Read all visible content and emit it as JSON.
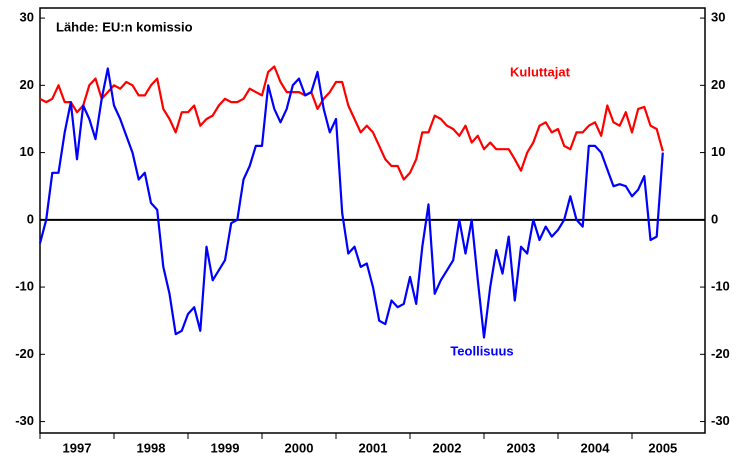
{
  "chart_data": {
    "type": "line",
    "source": "Lähde: EU:n komissio",
    "categories": [
      null,
      null,
      null,
      null,
      null,
      null,
      "1997",
      null,
      null,
      null,
      null,
      null,
      null,
      null,
      null,
      null,
      null,
      null,
      "1998",
      null,
      null,
      null,
      null,
      null,
      null,
      null,
      null,
      null,
      null,
      null,
      "1999",
      null,
      null,
      null,
      null,
      null,
      null,
      null,
      null,
      null,
      null,
      null,
      "2000",
      null,
      null,
      null,
      null,
      null,
      null,
      null,
      null,
      null,
      null,
      null,
      "2001",
      null,
      null,
      null,
      null,
      null,
      null,
      null,
      null,
      null,
      null,
      null,
      "2002",
      null,
      null,
      null,
      null,
      null,
      null,
      null,
      null,
      null,
      null,
      null,
      "2003",
      null,
      null,
      null,
      null,
      null,
      null,
      null,
      null,
      null,
      null,
      null,
      "2004",
      null,
      null,
      null,
      null,
      null,
      null,
      null,
      null,
      null,
      null,
      "2005"
    ],
    "series": [
      {
        "name": "Kuluttajat",
        "color": "#ff0000",
        "values": [
          18,
          17.5,
          18,
          20,
          17.5,
          17.5,
          16,
          17,
          20,
          21,
          18,
          19,
          20,
          19.5,
          20.5,
          20,
          18.5,
          18.5,
          20,
          21,
          16.5,
          15,
          13,
          16,
          16,
          17,
          14,
          15,
          15.5,
          17,
          18,
          17.5,
          17.5,
          18,
          19.5,
          19,
          18.5,
          22,
          22.8,
          20.5,
          19,
          19,
          19,
          18.5,
          19,
          16.5,
          18,
          19,
          20.5,
          20.5,
          17,
          15,
          13,
          14,
          13,
          11,
          9,
          8,
          8,
          6,
          7,
          9,
          13,
          13,
          15.5,
          15,
          14,
          13.5,
          12.5,
          14,
          11.5,
          12.5,
          10.5,
          11.5,
          10.5,
          10.5,
          10.5,
          9,
          7.3,
          10,
          11.5,
          14,
          14.5,
          13,
          13.5,
          11,
          10.5,
          13,
          13,
          14,
          14.5,
          12.5,
          17,
          14.5,
          14,
          16,
          13,
          16.5,
          16.8,
          14,
          13.5,
          10.2
        ]
      },
      {
        "name": "Teollisuus",
        "color": "#0000ff",
        "values": [
          -3.5,
          0,
          7,
          7,
          13,
          17.5,
          9,
          17,
          15,
          12,
          18,
          22.5,
          17,
          15,
          12.5,
          10,
          6,
          7,
          2.5,
          1.5,
          -7,
          -11,
          -17,
          -16.5,
          -14,
          -13,
          -16.5,
          -4,
          -9,
          -7.5,
          -6,
          -0.5,
          0,
          6,
          8,
          11,
          11,
          20,
          16.5,
          14.5,
          16.5,
          20,
          21,
          18.5,
          19,
          22,
          16.5,
          13,
          15,
          1,
          -5,
          -4,
          -7,
          -6.5,
          -10,
          -15,
          -15.5,
          -12,
          -13,
          -12.5,
          -8.5,
          -12.5,
          -4,
          2.3,
          -11,
          -9,
          -7.5,
          -6,
          0,
          -5,
          0,
          -9,
          -17.5,
          -10,
          -4.5,
          -8,
          -2.5,
          -12,
          -4,
          -5,
          0,
          -3,
          -1,
          -2.5,
          -1.5,
          0,
          3.5,
          0,
          -1,
          11,
          11,
          10,
          7.5,
          5,
          5.3,
          5,
          3.5,
          4.5,
          6.5,
          -3,
          -2.5,
          10
        ]
      }
    ],
    "ylim": [
      -31.7,
      31.5
    ],
    "yticks": [
      -30,
      -20,
      -10,
      0,
      10,
      20,
      30
    ]
  }
}
